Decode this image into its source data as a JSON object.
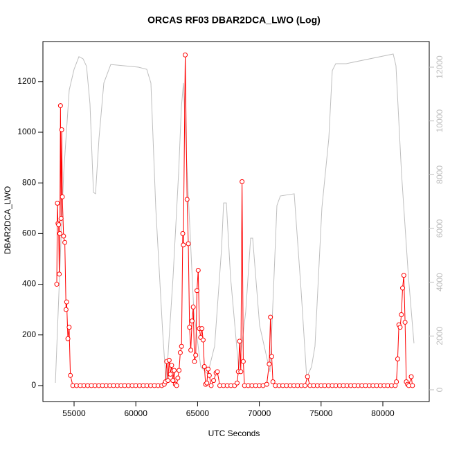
{
  "chart_data": {
    "type": "line",
    "title": "ORCAS RF03 DBAR2DCA_LWO (Log)",
    "xlabel": "UTC Seconds",
    "ylabel": "DBAR2DCA_LWO",
    "xlim": [
      52478,
      83756
    ],
    "xticks": [
      55000,
      60000,
      65000,
      70000,
      75000,
      80000
    ],
    "ylim": [
      -63,
      1358
    ],
    "yticks": [
      0,
      200,
      400,
      600,
      800,
      1000,
      1200
    ],
    "y2lim": [
      -438,
      12953
    ],
    "y2ticks": [
      0,
      2000,
      4000,
      6000,
      8000,
      10000,
      12000
    ],
    "series": [
      {
        "color": "#ff0000",
        "marker": "circle",
        "x": [
          53600,
          53650,
          53700,
          53750,
          53800,
          53850,
          53900,
          53950,
          54000,
          54050,
          54150,
          54250,
          54350,
          54400,
          54500,
          54600,
          54700,
          54900,
          55200,
          55500,
          55800,
          56100,
          56400,
          56700,
          57000,
          57300,
          57600,
          57900,
          58200,
          58500,
          58800,
          59100,
          59400,
          59700,
          60000,
          60300,
          60600,
          60900,
          61200,
          61500,
          61800,
          62100,
          62300,
          62400,
          62500,
          62600,
          62700,
          62800,
          62900,
          63000,
          63100,
          63200,
          63300,
          63400,
          63500,
          63600,
          63700,
          63800,
          63850,
          64000,
          64150,
          64250,
          64350,
          64450,
          64550,
          64650,
          64750,
          64850,
          64950,
          65050,
          65150,
          65250,
          65350,
          65450,
          65550,
          65650,
          65750,
          65850,
          65950,
          66100,
          66300,
          66500,
          66600,
          66800,
          67100,
          67400,
          67700,
          68000,
          68200,
          68300,
          68400,
          68500,
          68600,
          68700,
          68800,
          69100,
          69400,
          69700,
          70000,
          70300,
          70600,
          70800,
          70900,
          71000,
          71100,
          71300,
          71600,
          71900,
          72200,
          72500,
          72800,
          73100,
          73400,
          73700,
          73900,
          74100,
          74400,
          74700,
          75000,
          75300,
          75600,
          75900,
          76200,
          76500,
          76800,
          77100,
          77400,
          77700,
          78000,
          78300,
          78600,
          78900,
          79200,
          79500,
          79800,
          80100,
          80400,
          80700,
          81000,
          81100,
          81200,
          81300,
          81400,
          81500,
          81600,
          81700,
          81800,
          81900,
          82000,
          82100,
          82300,
          82400
        ],
        "values": [
          400,
          720,
          640,
          635,
          440,
          600,
          1105,
          660,
          1010,
          745,
          590,
          565,
          300,
          330,
          185,
          230,
          40,
          0,
          0,
          0,
          0,
          0,
          0,
          0,
          0,
          0,
          0,
          0,
          0,
          0,
          0,
          0,
          0,
          0,
          0,
          0,
          0,
          0,
          0,
          0,
          0,
          0,
          5,
          15,
          95,
          20,
          100,
          45,
          80,
          20,
          60,
          5,
          0,
          30,
          60,
          130,
          155,
          600,
          555,
          1305,
          735,
          560,
          230,
          140,
          255,
          310,
          95,
          120,
          375,
          455,
          225,
          190,
          225,
          180,
          75,
          5,
          10,
          65,
          40,
          0,
          20,
          50,
          55,
          0,
          0,
          0,
          0,
          0,
          10,
          55,
          175,
          55,
          805,
          95,
          0,
          0,
          0,
          0,
          0,
          0,
          5,
          85,
          270,
          115,
          15,
          0,
          0,
          0,
          0,
          0,
          0,
          0,
          0,
          0,
          35,
          0,
          0,
          0,
          0,
          0,
          0,
          0,
          0,
          0,
          0,
          0,
          0,
          0,
          0,
          0,
          0,
          0,
          0,
          0,
          0,
          0,
          0,
          0,
          0,
          15,
          105,
          240,
          230,
          280,
          385,
          435,
          250,
          15,
          5,
          0,
          35,
          0
        ]
      },
      {
        "color": "#bebebe",
        "axis": "y2",
        "x": [
          53487,
          53823,
          54160,
          54608,
          55000,
          55392,
          55729,
          56009,
          56289,
          56569,
          56738,
          57018,
          57410,
          57971,
          60213,
          60885,
          61221,
          61614,
          62174,
          62455,
          63015,
          63464,
          63688,
          63856,
          64136,
          64697,
          65257,
          65818,
          66378,
          66939,
          67107,
          67331,
          67667,
          68340,
          68900,
          69293,
          69461,
          70022,
          70862,
          71142,
          71423,
          71703,
          72824,
          73384,
          73833,
          74225,
          74505,
          75066,
          75626,
          75906,
          76187,
          77028,
          80839,
          81063,
          81511,
          82072,
          82520
        ],
        "values": [
          257,
          4197,
          8060,
          11150,
          11920,
          12390,
          12310,
          12030,
          10630,
          7340,
          7290,
          9350,
          11410,
          12100,
          12000,
          11920,
          11410,
          6770,
          2140,
          210,
          4200,
          8060,
          10510,
          11410,
          8320,
          2910,
          850,
          590,
          1620,
          5230,
          6950,
          6950,
          4200,
          720,
          2910,
          5640,
          5640,
          2390,
          670,
          3680,
          6850,
          7210,
          7290,
          3680,
          460,
          850,
          1620,
          6770,
          9350,
          11870,
          12130,
          12130,
          12490,
          12050,
          8060,
          4200,
          1730
        ]
      }
    ]
  }
}
